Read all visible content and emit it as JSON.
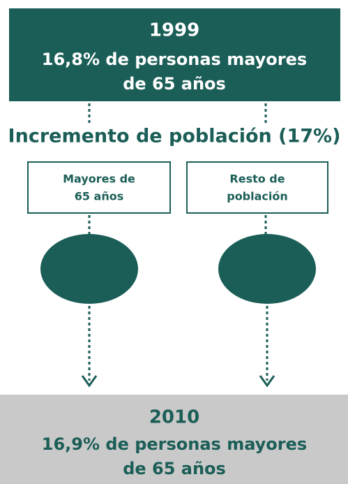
{
  "top": {
    "year": "1999",
    "lines": [
      "16,8% de personas mayores",
      "de 65 años"
    ]
  },
  "heading": "Incremento de población (17%)",
  "nodes": [
    {
      "lines": [
        "Mayores de",
        "65 años"
      ]
    },
    {
      "lines": [
        "Resto de",
        "población"
      ]
    }
  ],
  "bottom": {
    "year": "2010",
    "lines": [
      "16,9% de personas mayores",
      "de 65 años"
    ]
  }
}
